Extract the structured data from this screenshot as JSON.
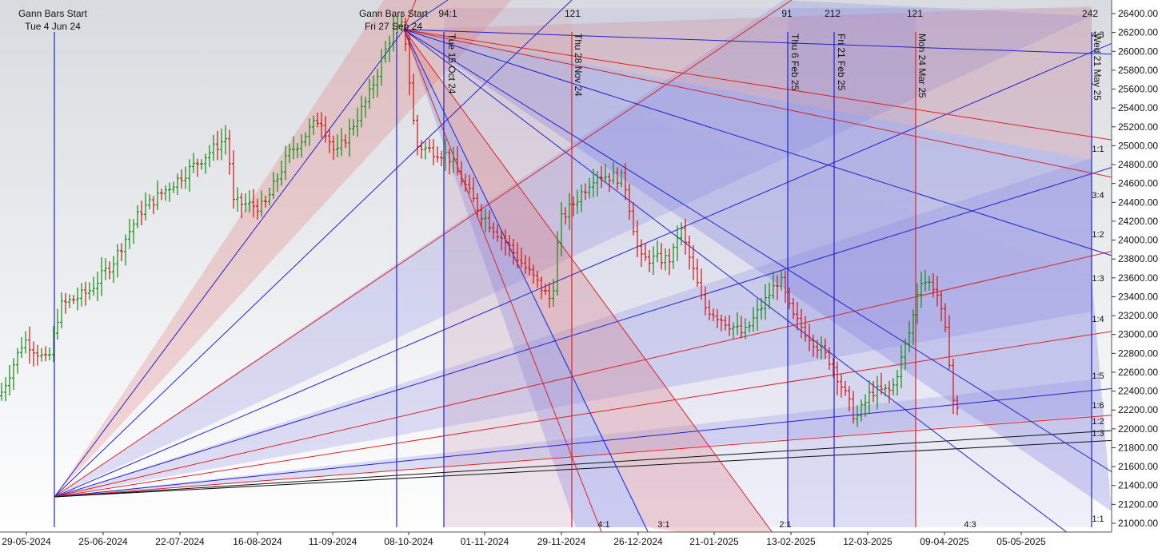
{
  "chart_data": {
    "type": "ohlc",
    "title": "",
    "ylim": [
      20950,
      26450
    ],
    "y_ticks": [
      "26400.00",
      "26200.00",
      "26000.00",
      "25800.00",
      "25600.00",
      "25400.00",
      "25200.00",
      "25000.00",
      "24800.00",
      "24600.00",
      "24400.00",
      "24200.00",
      "24000.00",
      "23800.00",
      "23600.00",
      "23400.00",
      "23200.00",
      "23000.00",
      "22800.00",
      "22600.00",
      "22400.00",
      "22200.00",
      "22000.00",
      "21800.00",
      "21600.00",
      "21400.00",
      "21200.00",
      "21000.00"
    ],
    "x_ticks": [
      "29-05-2024",
      "25-06-2024",
      "22-07-2024",
      "16-08-2024",
      "11-09-2024",
      "08-10-2024",
      "01-11-2024",
      "29-11-2024",
      "26-12-2024",
      "21-01-2025",
      "13-02-2025",
      "12-03-2025",
      "09-04-2025",
      "05-05-2025"
    ],
    "gann_starts": [
      {
        "label": "Gann Bars Start",
        "date": "Tue 4 Jun 24"
      },
      {
        "label": "Gann Bars Start",
        "date": "Fri 27 Sep 24"
      }
    ],
    "vertical_markers": [
      {
        "label": "Tue 15 Oct 24"
      },
      {
        "label": "Thu 28 Nov 24"
      },
      {
        "label": "Thu 6 Feb 25"
      },
      {
        "label": "Fri 21 Feb 25"
      },
      {
        "label": "Mon 24 Mar 25"
      },
      {
        "label": "Wed 21 May 25"
      }
    ],
    "top_counts": [
      "94:1",
      "121",
      "91",
      "212",
      "121",
      "242"
    ],
    "right_ratios": [
      "4:3",
      "1:1",
      "3:4",
      "1:2",
      "1:3",
      "1:4",
      "1:5",
      "1:6",
      "1:2",
      "1:3",
      "1:1"
    ],
    "bottom_ratios": [
      "4:1",
      "3:1",
      "2:1",
      "4:3"
    ],
    "series": [
      {
        "name": "",
        "values": []
      }
    ]
  }
}
